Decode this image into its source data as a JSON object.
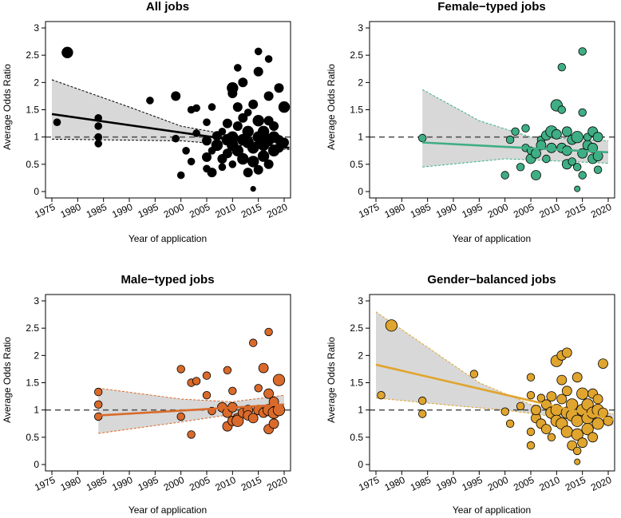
{
  "figure": {
    "colors": {
      "frame": "#000000",
      "band": "#d8d8d8",
      "refline": "#555555"
    }
  },
  "chart_data": [
    {
      "type": "scatter",
      "title": "All jobs",
      "xlabel": "Year of application",
      "ylabel": "Average Odds Ratio",
      "xlim": [
        1975,
        2020
      ],
      "ylim": [
        0,
        3
      ],
      "xticks": [
        "1975",
        "1980",
        "1985",
        "1990",
        "1995",
        "2000",
        "2005",
        "2010",
        "2015",
        "2020"
      ],
      "yticks": [
        "0",
        "0.5",
        "1",
        "1.5",
        "2",
        "2.5",
        "3"
      ],
      "grid": false,
      "reference_line": 1,
      "color": "#000000",
      "trend": {
        "start": [
          1975,
          1.42
        ],
        "end": [
          2021,
          0.8
        ]
      },
      "ci_lower": [
        [
          1975,
          0.96
        ],
        [
          2000,
          0.93
        ],
        [
          2021,
          0.77
        ]
      ],
      "ci_upper": [
        [
          1975,
          2.05
        ],
        [
          1990,
          1.55
        ],
        [
          2000,
          1.2
        ],
        [
          2010,
          1.03
        ],
        [
          2021,
          0.9
        ]
      ],
      "points": [
        [
          1976,
          1.27,
          2
        ],
        [
          1978,
          2.55,
          3
        ],
        [
          1984,
          1.35,
          2
        ],
        [
          1984,
          1.2,
          2
        ],
        [
          1984,
          1.0,
          2
        ],
        [
          1984,
          0.88,
          2
        ],
        [
          1994,
          1.67,
          2
        ],
        [
          1999,
          1.75,
          2.5
        ],
        [
          1999,
          0.97,
          2
        ],
        [
          2000,
          0.3,
          2
        ],
        [
          2001,
          0.75,
          2
        ],
        [
          2002,
          0.55,
          2
        ],
        [
          2002,
          1.5,
          2
        ],
        [
          2003,
          1.53,
          2
        ],
        [
          2003,
          1.07,
          2
        ],
        [
          2005,
          0.63,
          2.5
        ],
        [
          2005,
          0.42,
          2
        ],
        [
          2005,
          1.27,
          2
        ],
        [
          2005,
          0.93,
          2.5
        ],
        [
          2006,
          0.75,
          2
        ],
        [
          2006,
          1.55,
          2
        ],
        [
          2006,
          0.35,
          2.5
        ],
        [
          2007,
          0.85,
          3
        ],
        [
          2007,
          1.02,
          2.5
        ],
        [
          2008,
          0.6,
          2.5
        ],
        [
          2008,
          1.1,
          2
        ],
        [
          2008,
          0.45,
          2
        ],
        [
          2009,
          0.95,
          3
        ],
        [
          2009,
          1.25,
          2.5
        ],
        [
          2009,
          0.7,
          2.5
        ],
        [
          2010,
          1.8,
          2.5
        ],
        [
          2010,
          1.9,
          3
        ],
        [
          2010,
          1.0,
          3
        ],
        [
          2010,
          0.5,
          2
        ],
        [
          2010,
          0.85,
          3
        ],
        [
          2011,
          1.55,
          2.5
        ],
        [
          2011,
          0.75,
          3
        ],
        [
          2011,
          2.27,
          2
        ],
        [
          2011,
          1.2,
          2.5
        ],
        [
          2012,
          0.95,
          3
        ],
        [
          2012,
          0.6,
          3
        ],
        [
          2012,
          2.0,
          2.5
        ],
        [
          2012,
          1.35,
          2.5
        ],
        [
          2013,
          0.9,
          3
        ],
        [
          2013,
          1.45,
          2
        ],
        [
          2013,
          0.35,
          2.5
        ],
        [
          2013,
          1.1,
          3
        ],
        [
          2014,
          0.05,
          1.5
        ],
        [
          2014,
          1.6,
          2.5
        ],
        [
          2014,
          0.8,
          3
        ],
        [
          2014,
          0.55,
          3
        ],
        [
          2015,
          2.57,
          2
        ],
        [
          2015,
          2.2,
          2.5
        ],
        [
          2015,
          1.0,
          3
        ],
        [
          2015,
          0.4,
          2.5
        ],
        [
          2015,
          1.3,
          3
        ],
        [
          2016,
          0.85,
          3
        ],
        [
          2016,
          1.1,
          3
        ],
        [
          2016,
          0.65,
          3
        ],
        [
          2017,
          1.75,
          2.5
        ],
        [
          2017,
          0.95,
          3
        ],
        [
          2017,
          1.3,
          2.5
        ],
        [
          2017,
          0.5,
          2.5
        ],
        [
          2017,
          2.43,
          2
        ],
        [
          2018,
          1.0,
          3
        ],
        [
          2018,
          0.75,
          3
        ],
        [
          2018,
          1.2,
          2.5
        ],
        [
          2019,
          1.9,
          2.5
        ],
        [
          2019,
          0.95,
          2.5
        ],
        [
          2019,
          0.8,
          2.5
        ],
        [
          2020,
          1.55,
          3
        ],
        [
          2020,
          0.9,
          2.5
        ]
      ]
    },
    {
      "type": "scatter",
      "title": "Female−typed jobs",
      "xlabel": "Year of application",
      "ylabel": "Average Odds Ratio",
      "xlim": [
        1975,
        2020
      ],
      "ylim": [
        0,
        3
      ],
      "xticks": [
        "1975",
        "1980",
        "1985",
        "1990",
        "1995",
        "2000",
        "2005",
        "2010",
        "2015",
        "2020"
      ],
      "yticks": [
        "0",
        "0.5",
        "1",
        "1.5",
        "2",
        "2.5",
        "3"
      ],
      "grid": false,
      "reference_line": 1,
      "color": "#3fae84",
      "trend": {
        "start": [
          1984,
          0.9
        ],
        "end": [
          2020,
          0.72
        ]
      },
      "ci_lower": [
        [
          1984,
          0.45
        ],
        [
          2000,
          0.6
        ],
        [
          2020,
          0.52
        ]
      ],
      "ci_upper": [
        [
          1984,
          1.87
        ],
        [
          1995,
          1.3
        ],
        [
          2005,
          1.0
        ],
        [
          2020,
          0.93
        ]
      ],
      "points": [
        [
          1984,
          0.98,
          2
        ],
        [
          2000,
          0.3,
          2
        ],
        [
          2001,
          0.95,
          2
        ],
        [
          2002,
          1.1,
          2
        ],
        [
          2003,
          0.45,
          2
        ],
        [
          2004,
          1.16,
          2
        ],
        [
          2004,
          0.8,
          2
        ],
        [
          2005,
          0.6,
          2.5
        ],
        [
          2005,
          0.75,
          2
        ],
        [
          2006,
          0.3,
          2.5
        ],
        [
          2006,
          0.7,
          2.5
        ],
        [
          2007,
          0.95,
          2
        ],
        [
          2007,
          0.85,
          2.5
        ],
        [
          2008,
          0.6,
          2
        ],
        [
          2008,
          1.03,
          2.5
        ],
        [
          2009,
          1.1,
          3
        ],
        [
          2009,
          0.8,
          2.5
        ],
        [
          2010,
          1.58,
          3
        ],
        [
          2010,
          1.05,
          2.5
        ],
        [
          2011,
          0.8,
          2.5
        ],
        [
          2011,
          1.5,
          2
        ],
        [
          2011,
          2.28,
          2
        ],
        [
          2012,
          0.5,
          2.5
        ],
        [
          2012,
          0.75,
          2.5
        ],
        [
          2012,
          1.1,
          2.5
        ],
        [
          2013,
          0.95,
          2.5
        ],
        [
          2013,
          0.55,
          2
        ],
        [
          2014,
          0.05,
          1.5
        ],
        [
          2014,
          1.0,
          3
        ],
        [
          2014,
          0.45,
          2
        ],
        [
          2015,
          2.57,
          2
        ],
        [
          2015,
          1.45,
          2
        ],
        [
          2015,
          0.7,
          2.5
        ],
        [
          2015,
          0.3,
          2
        ],
        [
          2016,
          0.85,
          2.5
        ],
        [
          2016,
          1.0,
          2
        ],
        [
          2017,
          0.6,
          2.5
        ],
        [
          2017,
          1.1,
          2.5
        ],
        [
          2017,
          0.8,
          2.5
        ],
        [
          2018,
          1.0,
          2.5
        ],
        [
          2018,
          0.4,
          2
        ],
        [
          2018,
          0.65,
          2.5
        ]
      ]
    },
    {
      "type": "scatter",
      "title": "Male−typed jobs",
      "xlabel": "Year of application",
      "ylabel": "Average Odds Ratio",
      "xlim": [
        1975,
        2020
      ],
      "ylim": [
        0,
        3
      ],
      "xticks": [
        "1975",
        "1980",
        "1985",
        "1990",
        "1995",
        "2000",
        "2005",
        "2010",
        "2015",
        "2020"
      ],
      "yticks": [
        "0",
        "0.5",
        "1",
        "1.5",
        "2",
        "2.5",
        "3"
      ],
      "grid": false,
      "reference_line": 1,
      "color": "#d96a2b",
      "trend": {
        "start": [
          1984,
          0.9
        ],
        "end": [
          2020,
          1.1
        ]
      },
      "ci_lower": [
        [
          1984,
          0.57
        ],
        [
          2000,
          0.78
        ],
        [
          2010,
          0.92
        ],
        [
          2020,
          0.95
        ]
      ],
      "ci_upper": [
        [
          1984,
          1.4
        ],
        [
          2000,
          1.2
        ],
        [
          2010,
          1.15
        ],
        [
          2020,
          1.27
        ]
      ],
      "points": [
        [
          1984,
          1.33,
          2
        ],
        [
          1984,
          1.1,
          2
        ],
        [
          1984,
          0.88,
          2
        ],
        [
          2000,
          1.75,
          2
        ],
        [
          2000,
          0.88,
          2
        ],
        [
          2002,
          1.5,
          2
        ],
        [
          2002,
          0.55,
          2
        ],
        [
          2003,
          1.53,
          2
        ],
        [
          2005,
          1.63,
          2
        ],
        [
          2005,
          1.27,
          2
        ],
        [
          2006,
          0.98,
          2
        ],
        [
          2008,
          1.05,
          2.5
        ],
        [
          2009,
          0.7,
          2.5
        ],
        [
          2009,
          1.73,
          2
        ],
        [
          2009,
          0.95,
          2.5
        ],
        [
          2010,
          0.8,
          2.5
        ],
        [
          2010,
          1.35,
          2
        ],
        [
          2010,
          1.05,
          2.5
        ],
        [
          2011,
          0.85,
          2.5
        ],
        [
          2011,
          0.8,
          3
        ],
        [
          2012,
          0.95,
          2.5
        ],
        [
          2013,
          1.0,
          2.5
        ],
        [
          2013,
          0.9,
          2.5
        ],
        [
          2014,
          2.23,
          2
        ],
        [
          2014,
          0.85,
          2.5
        ],
        [
          2015,
          1.0,
          2.5
        ],
        [
          2015,
          1.4,
          2
        ],
        [
          2016,
          1.77,
          2.5
        ],
        [
          2016,
          0.95,
          2.5
        ],
        [
          2017,
          1.0,
          3
        ],
        [
          2017,
          0.65,
          2.5
        ],
        [
          2017,
          1.3,
          2.5
        ],
        [
          2017,
          2.43,
          2
        ],
        [
          2018,
          0.95,
          3
        ],
        [
          2018,
          0.75,
          2.5
        ],
        [
          2018,
          1.15,
          2.5
        ],
        [
          2019,
          1.55,
          3
        ],
        [
          2019,
          1.0,
          3
        ]
      ]
    },
    {
      "type": "scatter",
      "title": "Gender−balanced jobs",
      "xlabel": "Year of application",
      "ylabel": "Average Odds Ratio",
      "xlim": [
        1975,
        2020
      ],
      "ylim": [
        0,
        3
      ],
      "xticks": [
        "1975",
        "1980",
        "1985",
        "1990",
        "1995",
        "2000",
        "2005",
        "2010",
        "2015",
        "2020"
      ],
      "yticks": [
        "0",
        "0.5",
        "1",
        "1.5",
        "2",
        "2.5",
        "3"
      ],
      "grid": false,
      "reference_line": 1,
      "color": "#e0a52e",
      "trend": {
        "start": [
          1975,
          1.83
        ],
        "end": [
          2021,
          0.82
        ]
      },
      "ci_lower": [
        [
          1975,
          1.22
        ],
        [
          1990,
          1.08
        ],
        [
          2000,
          1.0
        ],
        [
          2021,
          0.73
        ]
      ],
      "ci_upper": [
        [
          1975,
          2.8
        ],
        [
          1985,
          2.15
        ],
        [
          1995,
          1.5
        ],
        [
          2005,
          1.1
        ],
        [
          2021,
          0.93
        ]
      ],
      "points": [
        [
          1976,
          1.27,
          2
        ],
        [
          1978,
          2.55,
          3
        ],
        [
          1984,
          1.17,
          2
        ],
        [
          1984,
          0.93,
          2
        ],
        [
          1994,
          1.66,
          2
        ],
        [
          2000,
          0.97,
          2
        ],
        [
          2001,
          0.75,
          2
        ],
        [
          2003,
          1.07,
          2
        ],
        [
          2005,
          1.6,
          2
        ],
        [
          2005,
          0.6,
          2
        ],
        [
          2005,
          1.27,
          2
        ],
        [
          2005,
          0.35,
          2
        ],
        [
          2006,
          0.85,
          2.5
        ],
        [
          2006,
          1.0,
          2.5
        ],
        [
          2007,
          0.75,
          2.5
        ],
        [
          2007,
          1.22,
          2
        ],
        [
          2008,
          0.65,
          2.5
        ],
        [
          2008,
          1.1,
          2.5
        ],
        [
          2009,
          0.95,
          3
        ],
        [
          2009,
          1.25,
          2.5
        ],
        [
          2009,
          0.5,
          2
        ],
        [
          2010,
          1.9,
          3
        ],
        [
          2010,
          1.0,
          3
        ],
        [
          2010,
          0.8,
          3
        ],
        [
          2011,
          1.55,
          2.5
        ],
        [
          2011,
          0.75,
          3
        ],
        [
          2011,
          2.0,
          2.5
        ],
        [
          2011,
          1.2,
          2.5
        ],
        [
          2012,
          0.95,
          3
        ],
        [
          2012,
          0.6,
          3
        ],
        [
          2012,
          1.35,
          2.5
        ],
        [
          2012,
          2.05,
          2.5
        ],
        [
          2013,
          0.9,
          3
        ],
        [
          2013,
          0.35,
          2.5
        ],
        [
          2013,
          1.1,
          3
        ],
        [
          2014,
          1.6,
          2.5
        ],
        [
          2014,
          0.8,
          3
        ],
        [
          2014,
          0.55,
          3
        ],
        [
          2014,
          0.05,
          1.5
        ],
        [
          2014,
          0.25,
          2
        ],
        [
          2015,
          1.0,
          3
        ],
        [
          2015,
          0.4,
          2.5
        ],
        [
          2015,
          1.3,
          3
        ],
        [
          2016,
          0.85,
          3
        ],
        [
          2016,
          1.1,
          3
        ],
        [
          2016,
          0.65,
          3
        ],
        [
          2017,
          1.3,
          2.5
        ],
        [
          2017,
          0.95,
          3
        ],
        [
          2017,
          0.5,
          2.5
        ],
        [
          2018,
          1.0,
          3
        ],
        [
          2018,
          0.75,
          3
        ],
        [
          2018,
          1.2,
          2.5
        ],
        [
          2019,
          1.85,
          2.5
        ],
        [
          2019,
          0.95,
          2.5
        ],
        [
          2020,
          0.8,
          2.5
        ]
      ]
    }
  ]
}
